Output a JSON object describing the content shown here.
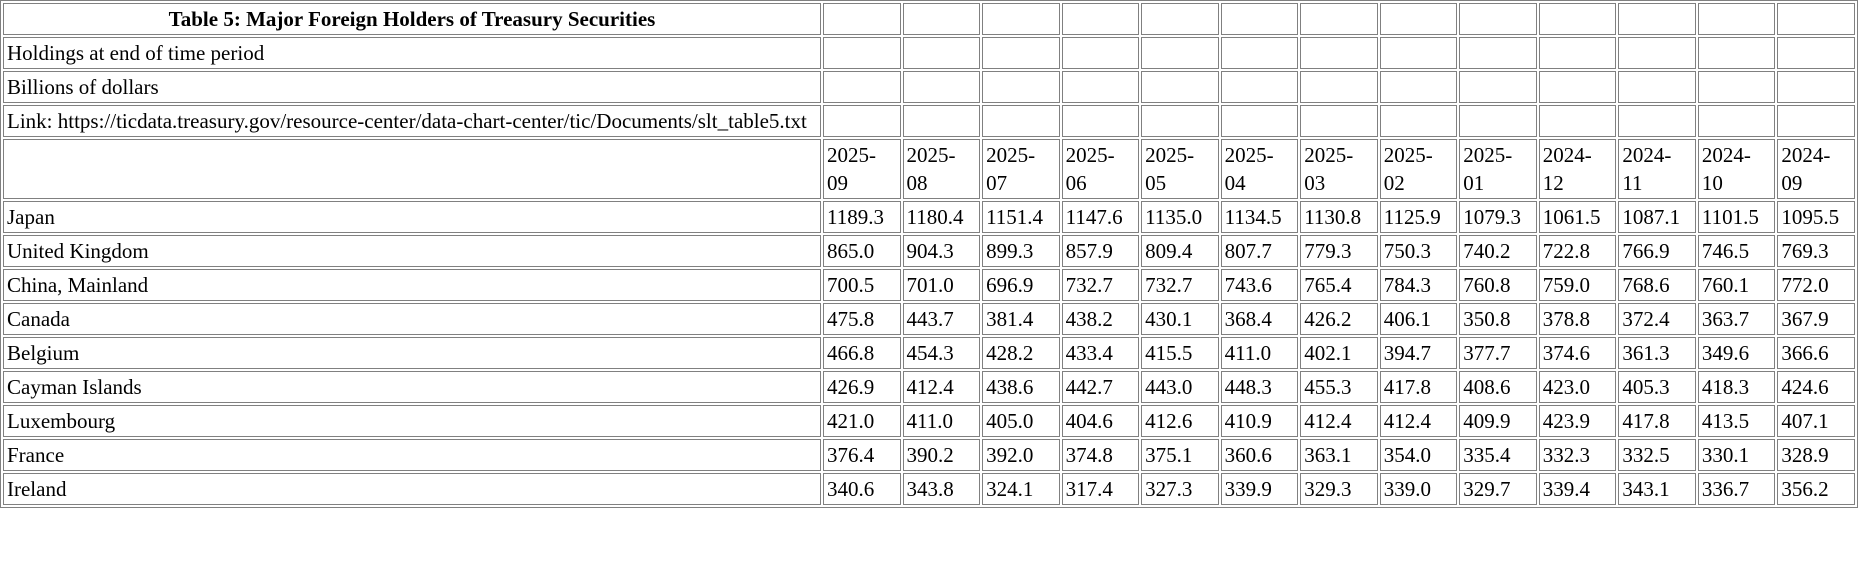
{
  "table": {
    "title": "Table 5: Major Foreign Holders of Treasury Securities",
    "holdings_note": "Holdings at end of time period",
    "units_note": "Billions of dollars",
    "link_note": "Link: https://ticdata.treasury.gov/resource-center/data-chart-center/tic/Documents/slt_table5.txt",
    "columns": [
      "2025-09",
      "2025-08",
      "2025-07",
      "2025-06",
      "2025-05",
      "2025-04",
      "2025-03",
      "2025-02",
      "2025-01",
      "2024-12",
      "2024-11",
      "2024-10",
      "2024-09"
    ],
    "rows": [
      {
        "country": "Japan",
        "values": [
          "1189.3",
          "1180.4",
          "1151.4",
          "1147.6",
          "1135.0",
          "1134.5",
          "1130.8",
          "1125.9",
          "1079.3",
          "1061.5",
          "1087.1",
          "1101.5",
          "1095.5"
        ]
      },
      {
        "country": "United Kingdom",
        "values": [
          "865.0",
          "904.3",
          "899.3",
          "857.9",
          "809.4",
          "807.7",
          "779.3",
          "750.3",
          "740.2",
          "722.8",
          "766.9",
          "746.5",
          "769.3"
        ]
      },
      {
        "country": "China, Mainland",
        "values": [
          "700.5",
          "701.0",
          "696.9",
          "732.7",
          "732.7",
          "743.6",
          "765.4",
          "784.3",
          "760.8",
          "759.0",
          "768.6",
          "760.1",
          "772.0"
        ]
      },
      {
        "country": "Canada",
        "values": [
          "475.8",
          "443.7",
          "381.4",
          "438.2",
          "430.1",
          "368.4",
          "426.2",
          "406.1",
          "350.8",
          "378.8",
          "372.4",
          "363.7",
          "367.9"
        ]
      },
      {
        "country": "Belgium",
        "values": [
          "466.8",
          "454.3",
          "428.2",
          "433.4",
          "415.5",
          "411.0",
          "402.1",
          "394.7",
          "377.7",
          "374.6",
          "361.3",
          "349.6",
          "366.6"
        ]
      },
      {
        "country": "Cayman Islands",
        "values": [
          "426.9",
          "412.4",
          "438.6",
          "442.7",
          "443.0",
          "448.3",
          "455.3",
          "417.8",
          "408.6",
          "423.0",
          "405.3",
          "418.3",
          "424.6"
        ]
      },
      {
        "country": "Luxembourg",
        "values": [
          "421.0",
          "411.0",
          "405.0",
          "404.6",
          "412.6",
          "410.9",
          "412.4",
          "412.4",
          "409.9",
          "423.9",
          "417.8",
          "413.5",
          "407.1"
        ]
      },
      {
        "country": "France",
        "values": [
          "376.4",
          "390.2",
          "392.0",
          "374.8",
          "375.1",
          "360.6",
          "363.1",
          "354.0",
          "335.4",
          "332.3",
          "332.5",
          "330.1",
          "328.9"
        ]
      },
      {
        "country": "Ireland",
        "values": [
          "340.6",
          "343.8",
          "324.1",
          "317.4",
          "327.3",
          "339.9",
          "329.3",
          "339.0",
          "329.7",
          "339.4",
          "343.1",
          "336.7",
          "356.2"
        ]
      }
    ]
  }
}
